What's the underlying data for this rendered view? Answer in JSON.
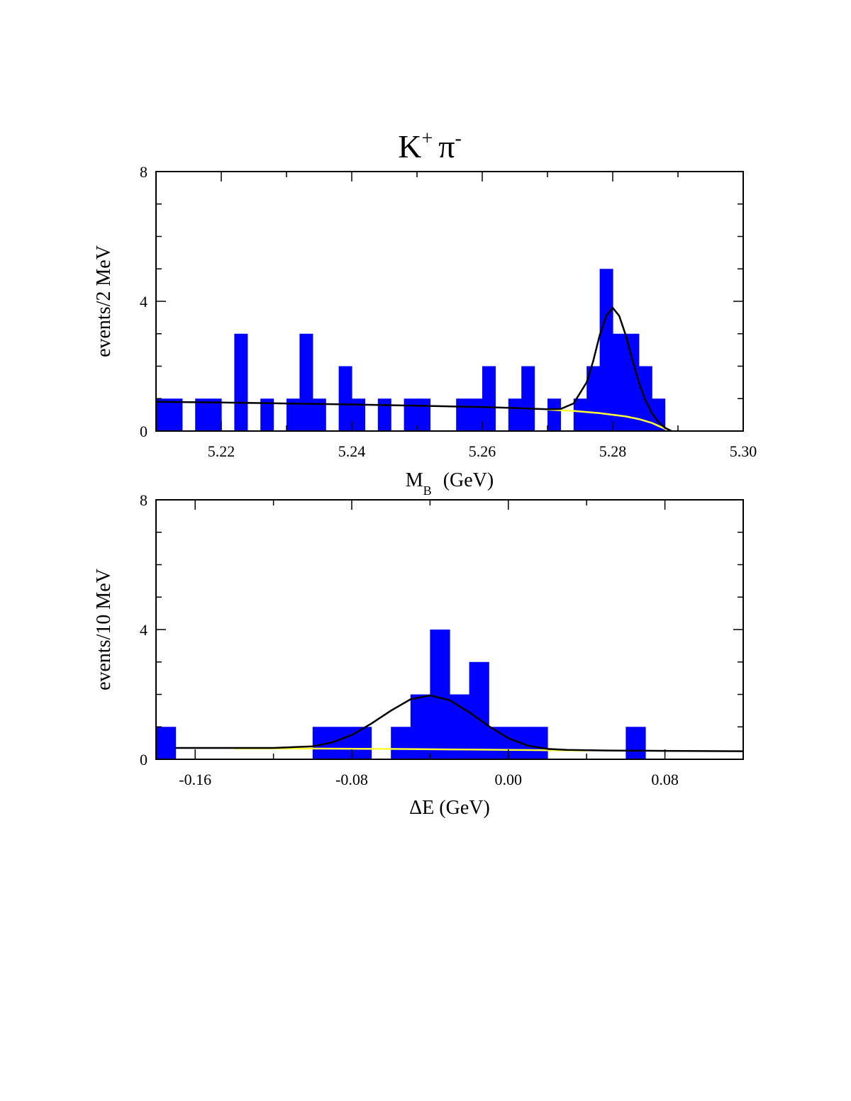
{
  "page_title": {
    "main": "K",
    "sup1": "+",
    "greek": "π",
    "sup2": "-"
  },
  "colors": {
    "bars": "#0000ff",
    "total_fit": "#000000",
    "background_fit": "#ffff33",
    "axes": "#000000"
  },
  "chart_data": [
    {
      "type": "bar",
      "xlabel": {
        "main": "M",
        "sub": "B",
        "rest": "(GeV)"
      },
      "ylabel": "events/2 MeV",
      "xlim": [
        5.21,
        5.3
      ],
      "ylim": [
        0,
        8
      ],
      "xticks": [
        5.22,
        5.24,
        5.26,
        5.28,
        5.3
      ],
      "xtick_labels": [
        "5.22",
        "5.24",
        "5.26",
        "5.28",
        "5.30"
      ],
      "yticks": [
        0,
        4,
        8
      ],
      "ytick_labels": [
        "0",
        "4",
        "8"
      ],
      "bin_width": 0.002,
      "bin_starts": [
        5.21,
        5.212,
        5.216,
        5.218,
        5.222,
        5.226,
        5.23,
        5.232,
        5.234,
        5.238,
        5.24,
        5.244,
        5.248,
        5.25,
        5.256,
        5.258,
        5.26,
        5.264,
        5.266,
        5.27,
        5.274,
        5.276,
        5.278,
        5.28,
        5.282,
        5.284,
        5.286
      ],
      "counts": [
        1,
        1,
        1,
        1,
        3,
        1,
        1,
        3,
        1,
        2,
        1,
        1,
        1,
        1,
        1,
        1,
        2,
        1,
        2,
        1,
        1,
        2,
        5,
        3,
        3,
        2,
        1
      ],
      "fit_total": {
        "x": [
          5.21,
          5.22,
          5.23,
          5.24,
          5.25,
          5.26,
          5.265,
          5.27,
          5.272,
          5.274,
          5.276,
          5.277,
          5.278,
          5.279,
          5.28,
          5.281,
          5.282,
          5.283,
          5.284,
          5.285,
          5.286,
          5.287,
          5.288,
          5.289
        ],
        "y": [
          0.9,
          0.88,
          0.85,
          0.82,
          0.78,
          0.74,
          0.71,
          0.67,
          0.68,
          0.85,
          1.5,
          2.15,
          2.95,
          3.55,
          3.8,
          3.55,
          2.95,
          2.2,
          1.5,
          0.95,
          0.55,
          0.28,
          0.1,
          0.0
        ]
      },
      "fit_background": {
        "x": [
          5.27,
          5.274,
          5.278,
          5.282,
          5.284,
          5.286,
          5.287,
          5.288,
          5.289
        ],
        "y": [
          0.66,
          0.62,
          0.55,
          0.45,
          0.37,
          0.25,
          0.16,
          0.07,
          0.0
        ]
      }
    },
    {
      "type": "bar",
      "xlabel": {
        "main": "ΔE (GeV)"
      },
      "ylabel": "events/10 MeV",
      "xlim": [
        -0.18,
        0.12
      ],
      "ylim": [
        0,
        8
      ],
      "xticks": [
        -0.16,
        -0.08,
        0.0,
        0.08
      ],
      "xtick_labels": [
        "-0.16",
        "-0.08",
        "0.00",
        "0.08"
      ],
      "yticks": [
        0,
        4,
        8
      ],
      "ytick_labels": [
        "0",
        "4",
        "8"
      ],
      "bin_width": 0.01,
      "bin_starts": [
        -0.18,
        -0.1,
        -0.09,
        -0.08,
        -0.06,
        -0.05,
        -0.04,
        -0.03,
        -0.02,
        -0.01,
        0.0,
        0.01,
        0.06
      ],
      "counts": [
        1,
        1,
        1,
        1,
        1,
        2,
        4,
        2,
        3,
        1,
        1,
        1,
        1
      ],
      "fit_total": {
        "x": [
          -0.17,
          -0.14,
          -0.12,
          -0.1,
          -0.09,
          -0.08,
          -0.07,
          -0.06,
          -0.05,
          -0.04,
          -0.03,
          -0.02,
          -0.01,
          0.0,
          0.01,
          0.02,
          0.03,
          0.05,
          0.08,
          0.12
        ],
        "y": [
          0.35,
          0.35,
          0.35,
          0.4,
          0.52,
          0.75,
          1.1,
          1.5,
          1.85,
          1.97,
          1.82,
          1.45,
          1.02,
          0.65,
          0.42,
          0.32,
          0.29,
          0.27,
          0.26,
          0.25
        ]
      },
      "fit_background": {
        "x": [
          -0.14,
          -0.1,
          -0.06,
          -0.02,
          0.02,
          0.04
        ],
        "y": [
          0.33,
          0.33,
          0.32,
          0.3,
          0.28,
          0.27
        ]
      }
    }
  ]
}
